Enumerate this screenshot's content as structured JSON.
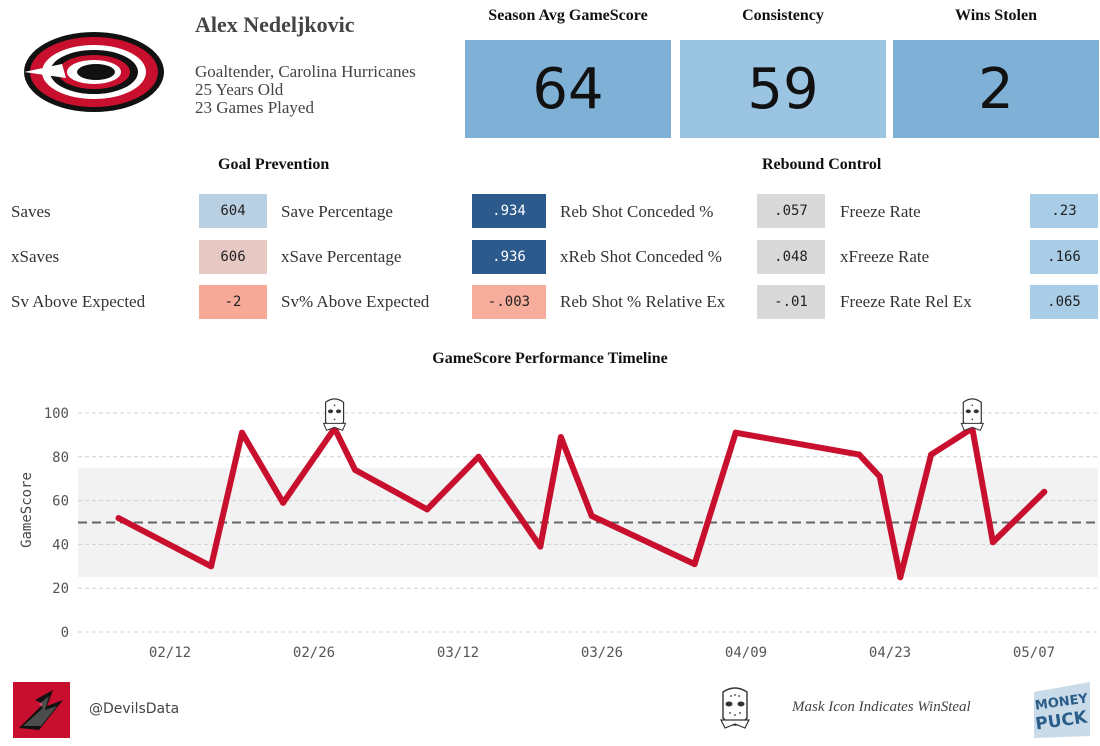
{
  "player": {
    "name": "Alex Nedeljkovic",
    "position_team": "Goaltender, Carolina Hurricanes",
    "age": "25 Years Old",
    "games": "23 Games Played"
  },
  "summary_cards": [
    {
      "title": "Season Avg GameScore",
      "value": "64",
      "color": "#7fb0d6"
    },
    {
      "title": "Consistency",
      "value": "59",
      "color": "#9bc4e2"
    },
    {
      "title": "Wins Stolen",
      "value": "2",
      "color": "#7fb0d6"
    }
  ],
  "goal_prevention": {
    "title": "Goal Prevention",
    "left": [
      {
        "label": "Saves",
        "value": "604",
        "color": "#b9cfe2",
        "text_color": "#222"
      },
      {
        "label": "xSaves",
        "value": "606",
        "color": "#e6c9c3",
        "text_color": "#222"
      },
      {
        "label": "Sv Above Expected",
        "value": "-2",
        "color": "#f7a997",
        "text_color": "#222"
      }
    ],
    "right": [
      {
        "label": "Save Percentage",
        "value": ".934",
        "color": "#2c5a8c",
        "text_color": "#ffffff"
      },
      {
        "label": "xSave Percentage",
        "value": ".936",
        "color": "#2c5a8c",
        "text_color": "#ffffff"
      },
      {
        "label": "Sv% Above Expected",
        "value": "-.003",
        "color": "#f7ad9b",
        "text_color": "#222"
      }
    ]
  },
  "rebound_control": {
    "title": "Rebound Control",
    "left": [
      {
        "label": "Reb Shot Conceded %",
        "value": ".057",
        "color": "#d9d9d9",
        "text_color": "#222"
      },
      {
        "label": "xReb Shot Conceded %",
        "value": ".048",
        "color": "#d9d9d9",
        "text_color": "#222"
      },
      {
        "label": "Reb Shot % Relative Ex",
        "value": "-.01",
        "color": "#d9d9d9",
        "text_color": "#222"
      }
    ],
    "right": [
      {
        "label": "Freeze Rate",
        "value": ".23",
        "color": "#a9cde6",
        "text_color": "#222"
      },
      {
        "label": "xFreeze Rate",
        "value": ".166",
        "color": "#a9cde6",
        "text_color": "#222"
      },
      {
        "label": "Freeze Rate Rel Ex",
        "value": ".065",
        "color": "#a9cde6",
        "text_color": "#222"
      }
    ]
  },
  "chart_data": {
    "type": "line",
    "title": "GameScore Performance Timeline",
    "ylabel": "GameScore",
    "xlabel": "",
    "ylim": [
      0,
      100
    ],
    "yticks": [
      0,
      20,
      40,
      60,
      80,
      100
    ],
    "xticks": [
      "02/12",
      "02/26",
      "03/12",
      "03/26",
      "04/09",
      "04/23",
      "05/07"
    ],
    "x_tick_dates": [
      "2021-02-12",
      "2021-02-26",
      "2021-03-12",
      "2021-03-26",
      "2021-04-09",
      "2021-04-23",
      "2021-05-07"
    ],
    "band": [
      25,
      75
    ],
    "mean_line": 50,
    "line_color": "#c8102e",
    "series": [
      {
        "points": [
          {
            "date": "2021-02-07",
            "y": 52
          },
          {
            "date": "2021-02-16",
            "y": 30
          },
          {
            "date": "2021-02-19",
            "y": 91
          },
          {
            "date": "2021-02-23",
            "y": 59
          },
          {
            "date": "2021-02-28",
            "y": 93,
            "winsteal": true
          },
          {
            "date": "2021-03-02",
            "y": 74
          },
          {
            "date": "2021-03-09",
            "y": 56
          },
          {
            "date": "2021-03-14",
            "y": 80
          },
          {
            "date": "2021-03-20",
            "y": 39
          },
          {
            "date": "2021-03-22",
            "y": 89
          },
          {
            "date": "2021-03-25",
            "y": 53
          },
          {
            "date": "2021-04-04",
            "y": 31
          },
          {
            "date": "2021-04-08",
            "y": 91
          },
          {
            "date": "2021-04-20",
            "y": 81
          },
          {
            "date": "2021-04-22",
            "y": 71
          },
          {
            "date": "2021-04-24",
            "y": 25
          },
          {
            "date": "2021-04-27",
            "y": 81
          },
          {
            "date": "2021-05-01",
            "y": 93,
            "winsteal": true
          },
          {
            "date": "2021-05-03",
            "y": 41
          },
          {
            "date": "2021-05-08",
            "y": 64
          }
        ]
      }
    ]
  },
  "footer": {
    "handle": "@DevilsData",
    "legend": "Mask Icon Indicates WinSteal",
    "brand_line1": "MONEY",
    "brand_line2": "PUCK"
  }
}
